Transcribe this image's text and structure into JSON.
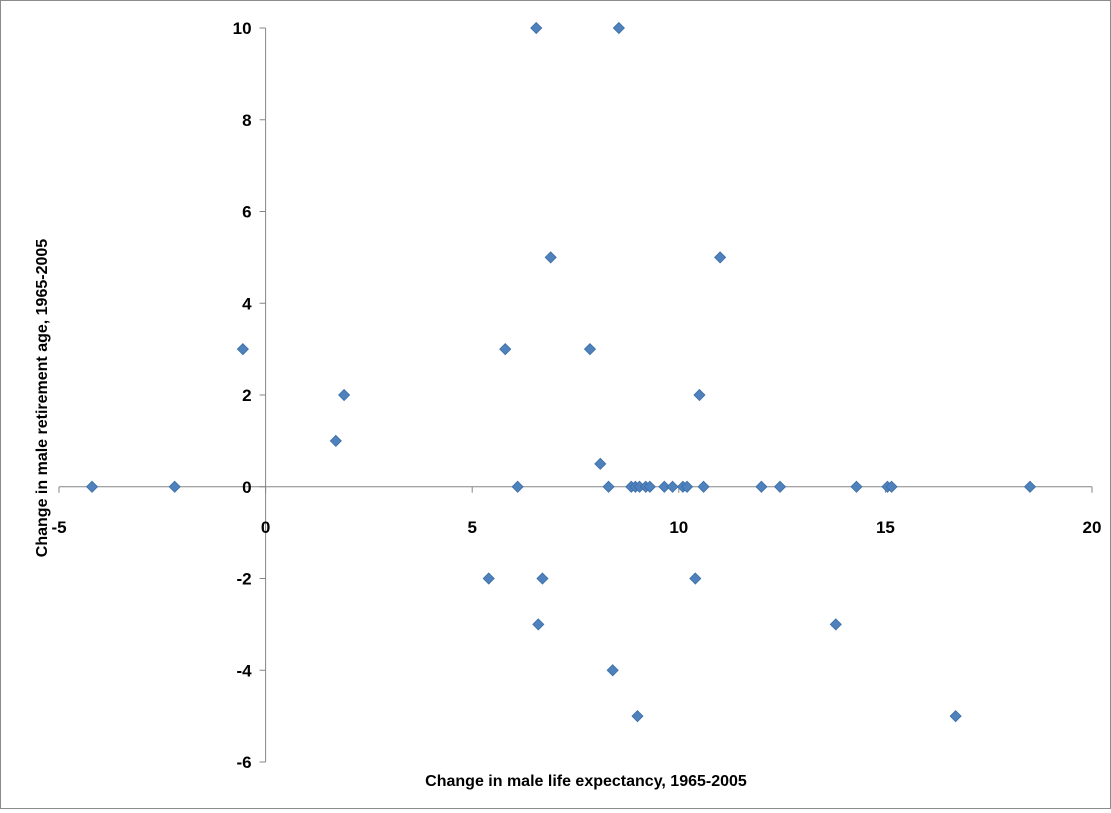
{
  "chart_data": {
    "type": "scatter",
    "title": "",
    "xlabel": "Change in male life expectancy, 1965-2005",
    "ylabel": "Change in male retirement age, 1965-2005",
    "xlim": [
      -5,
      20
    ],
    "ylim": [
      -6,
      10
    ],
    "x_ticks": [
      -5,
      0,
      5,
      10,
      15,
      20
    ],
    "y_ticks": [
      -6,
      -4,
      -2,
      0,
      2,
      4,
      6,
      8,
      10
    ],
    "x_tick_labels": [
      "-5",
      "0",
      "5",
      "10",
      "15",
      "20"
    ],
    "y_tick_labels": [
      "-6",
      "-4",
      "-2",
      "0",
      "2",
      "4",
      "6",
      "8",
      "10"
    ],
    "grid": false,
    "legend": "none",
    "marker_color": "#4F81BD",
    "marker_shape": "diamond",
    "series": [
      {
        "points": [
          {
            "x": -4.2,
            "y": 0
          },
          {
            "x": -2.2,
            "y": 0
          },
          {
            "x": -0.55,
            "y": 3
          },
          {
            "x": 1.7,
            "y": 1
          },
          {
            "x": 1.9,
            "y": 2
          },
          {
            "x": 5.4,
            "y": -2
          },
          {
            "x": 5.8,
            "y": 3
          },
          {
            "x": 6.1,
            "y": 0
          },
          {
            "x": 6.55,
            "y": 10
          },
          {
            "x": 6.6,
            "y": -3
          },
          {
            "x": 6.7,
            "y": -2
          },
          {
            "x": 6.9,
            "y": 5
          },
          {
            "x": 7.85,
            "y": 3
          },
          {
            "x": 8.1,
            "y": 0.5
          },
          {
            "x": 8.3,
            "y": 0
          },
          {
            "x": 8.4,
            "y": -4
          },
          {
            "x": 8.55,
            "y": 10
          },
          {
            "x": 8.85,
            "y": 0
          },
          {
            "x": 8.95,
            "y": 0
          },
          {
            "x": 9.05,
            "y": 0
          },
          {
            "x": 9.0,
            "y": -5
          },
          {
            "x": 9.2,
            "y": 0
          },
          {
            "x": 9.3,
            "y": 0
          },
          {
            "x": 9.65,
            "y": 0
          },
          {
            "x": 9.85,
            "y": 0
          },
          {
            "x": 10.1,
            "y": 0
          },
          {
            "x": 10.2,
            "y": 0
          },
          {
            "x": 10.4,
            "y": -2
          },
          {
            "x": 10.5,
            "y": 2
          },
          {
            "x": 10.6,
            "y": 0
          },
          {
            "x": 11.0,
            "y": 5
          },
          {
            "x": 12.0,
            "y": 0
          },
          {
            "x": 12.45,
            "y": 0
          },
          {
            "x": 13.8,
            "y": -3
          },
          {
            "x": 14.3,
            "y": 0
          },
          {
            "x": 15.05,
            "y": 0
          },
          {
            "x": 15.15,
            "y": 0
          },
          {
            "x": 16.7,
            "y": -5
          },
          {
            "x": 18.5,
            "y": 0
          }
        ]
      }
    ]
  }
}
